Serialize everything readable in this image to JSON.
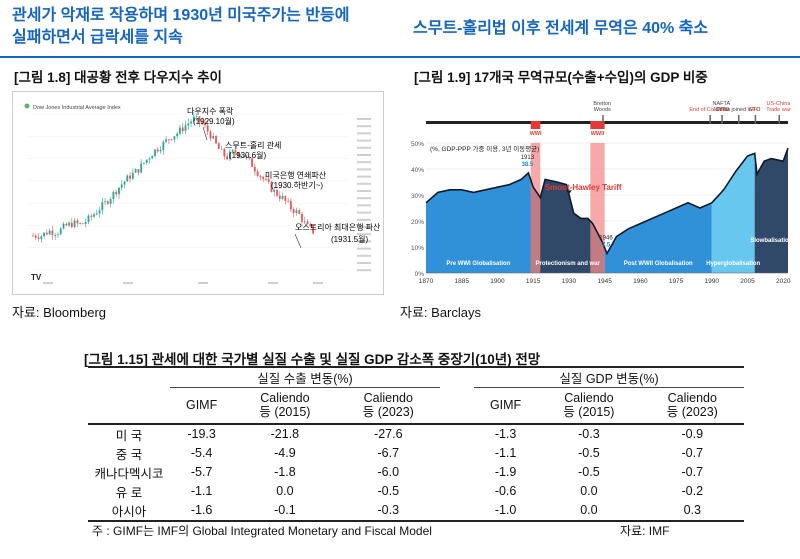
{
  "header": {
    "left_line1": "관세가 악재로 작용하며 1930년 미국주가는 반등에",
    "left_line2": "실패하면서 급락세를 지속",
    "right": "스무트-홀리법 이후 전세계 무역은 40% 축소"
  },
  "fig18": {
    "title": "[그림 1.8] 대공황 전후 다우지수 추이",
    "legend": "Dow Jones Industrial Average Index",
    "annotations": [
      {
        "line1": "다우지수 폭락",
        "line2": "(1929.10월)"
      },
      {
        "line1": "스무트-홀리 관세",
        "line2": "(1930.6월)"
      },
      {
        "line1": "미국은행 연쇄파산",
        "line2": "(1930.하반기~)"
      },
      {
        "line1": "오스트리아 최대은행 파산",
        "line2": "(1931.5월)"
      }
    ],
    "source": "자료: Bloomberg"
  },
  "fig19": {
    "title": "[그림 1.9] 17개국 무역규모(수출+수입)의 GDP 비중",
    "source": "자료: Barclays",
    "chart_data": {
      "type": "area",
      "title": "",
      "note": "(%, GDP-PPP 가중 이용, 3년 이동평균)",
      "x": [
        1870,
        1875,
        1880,
        1885,
        1890,
        1895,
        1900,
        1905,
        1910,
        1913,
        1915,
        1918,
        1920,
        1925,
        1929,
        1932,
        1935,
        1938,
        1940,
        1944,
        1946,
        1950,
        1955,
        1960,
        1965,
        1970,
        1975,
        1980,
        1985,
        1990,
        1995,
        2000,
        2005,
        2008,
        2009,
        2012,
        2015,
        2020,
        2022
      ],
      "y": [
        27,
        31,
        32,
        32,
        31,
        32,
        33,
        34,
        36,
        38.5,
        33,
        29,
        36,
        35,
        34,
        23,
        21,
        21,
        19,
        12,
        7.5,
        14,
        17,
        19,
        21,
        23,
        25,
        27,
        25,
        27,
        32,
        39,
        45,
        46,
        38,
        43,
        44,
        43,
        48
      ],
      "ylim": [
        0,
        50
      ],
      "xlim": [
        1870,
        2022
      ],
      "xticks": [
        1870,
        1885,
        1900,
        1915,
        1930,
        1945,
        1960,
        1975,
        1990,
        2005,
        2020
      ],
      "yticks": [
        "0%",
        "10%",
        "20%",
        "30%",
        "40%",
        "50%"
      ],
      "point_labels": [
        {
          "x": 1913,
          "y": 38.5,
          "year": "1913",
          "value": "38.5"
        },
        {
          "x": 1946,
          "y": 7.5,
          "year": "1946",
          "value": "7.5"
        }
      ],
      "annotation": "Smoot-Hawley Tariff",
      "events": [
        {
          "label": "WWI",
          "from": 1914,
          "to": 1918
        },
        {
          "label": "WWII",
          "from": 1939,
          "to": 1945
        },
        {
          "label": "Bretton\nWoods",
          "at": 1944
        },
        {
          "label": "NAFTA\n/ WTO",
          "at": 1994
        },
        {
          "label": "China joined WTO",
          "at": 2001
        },
        {
          "label": "End of Cold War",
          "at": 1989
        },
        {
          "label": "GFC",
          "at": 2008
        },
        {
          "label": "US-China\nTrade war",
          "at": 2018
        }
      ],
      "eras": [
        {
          "label": "Pre WWI Globalisation",
          "from": 1870,
          "to": 1914,
          "color": "#1e88d6"
        },
        {
          "label": "Protectionism and war",
          "from": 1914,
          "to": 1945,
          "color": "#203a5c"
        },
        {
          "label": "Post WWII Globalisation",
          "from": 1945,
          "to": 1990,
          "color": "#1e88d6"
        },
        {
          "label": "Hyperglobalisation",
          "from": 1990,
          "to": 2008,
          "color": "#5bc2ee"
        },
        {
          "label": "Slowbalisation",
          "from": 2008,
          "to": 2022,
          "color": "#203a5c"
        }
      ]
    }
  },
  "table": {
    "title": "[그림 1.15] 관세에 대한 국가별 실질 수출 및 실질 GDP 감소폭 중장기(10년) 전망",
    "group1": "실질 수출 변동(%)",
    "group2": "실질 GDP 변동(%)",
    "cols": [
      "GIMF",
      "Caliendo\n등 (2015)",
      "Caliendo\n등 (2023)"
    ],
    "rows": [
      {
        "label": "미 국",
        "exp": [
          "-19.3",
          "-21.8",
          "-27.6"
        ],
        "gdp": [
          "-1.3",
          "-0.3",
          "-0.9"
        ]
      },
      {
        "label": "중 국",
        "exp": [
          "-5.4",
          "-4.9",
          "-6.7"
        ],
        "gdp": [
          "-1.1",
          "-0.5",
          "-0.7"
        ]
      },
      {
        "label": "캐나다멕시코",
        "exp": [
          "-5.7",
          "-1.8",
          "-6.0"
        ],
        "gdp": [
          "-1.9",
          "-0.5",
          "-0.7"
        ]
      },
      {
        "label": "유 로",
        "exp": [
          "-1.1",
          "0.0",
          "-0.5"
        ],
        "gdp": [
          "-0.6",
          "0.0",
          "-0.2"
        ]
      },
      {
        "label": "아시아",
        "exp": [
          "-1.6",
          "-0.1",
          "-0.3"
        ],
        "gdp": [
          "-1.0",
          "0.0",
          "0.3"
        ]
      }
    ],
    "note": "주 : GIMF는 IMF의 Global Integrated Monetary and Fiscal Model",
    "source": "자료: IMF"
  }
}
